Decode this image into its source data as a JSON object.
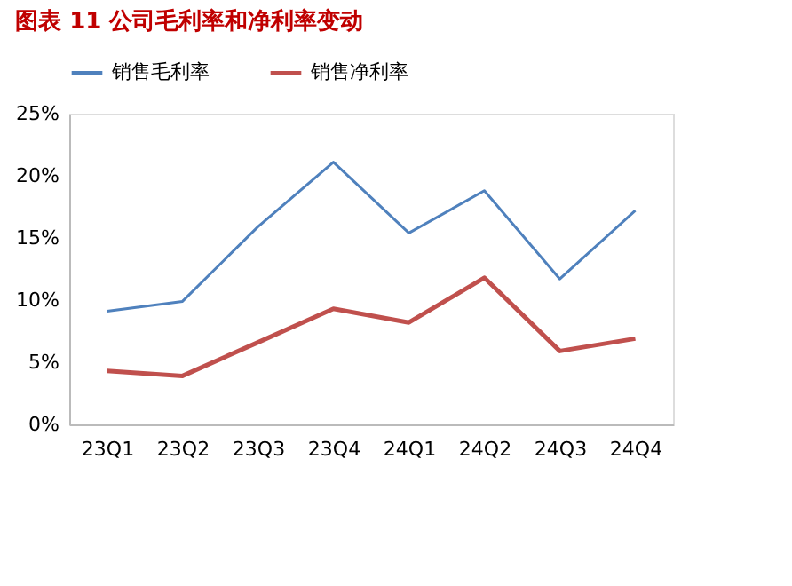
{
  "chart_data": {
    "type": "line",
    "title": "图表 11 公司毛利率和净利率变动",
    "categories": [
      "23Q1",
      "23Q2",
      "23Q3",
      "23Q4",
      "24Q1",
      "24Q2",
      "24Q3",
      "24Q4"
    ],
    "series": [
      {
        "name": "销售毛利率",
        "color": "#4f81bd",
        "values": [
          9.1,
          9.9,
          15.9,
          21.1,
          15.4,
          18.8,
          11.7,
          17.2
        ]
      },
      {
        "name": "销售净利率",
        "color": "#c0504d",
        "values": [
          4.3,
          3.9,
          6.6,
          9.3,
          8.2,
          11.8,
          5.9,
          6.9
        ]
      }
    ],
    "ylim": [
      0,
      25
    ],
    "yticks": [
      {
        "value": 0,
        "label": "0%"
      },
      {
        "value": 5,
        "label": "5%"
      },
      {
        "value": 10,
        "label": "10%"
      },
      {
        "value": 15,
        "label": "15%"
      },
      {
        "value": 20,
        "label": "20%"
      },
      {
        "value": 25,
        "label": "25%"
      }
    ],
    "grid": false,
    "legend": "top",
    "marker": "none",
    "line_style": "solid"
  }
}
